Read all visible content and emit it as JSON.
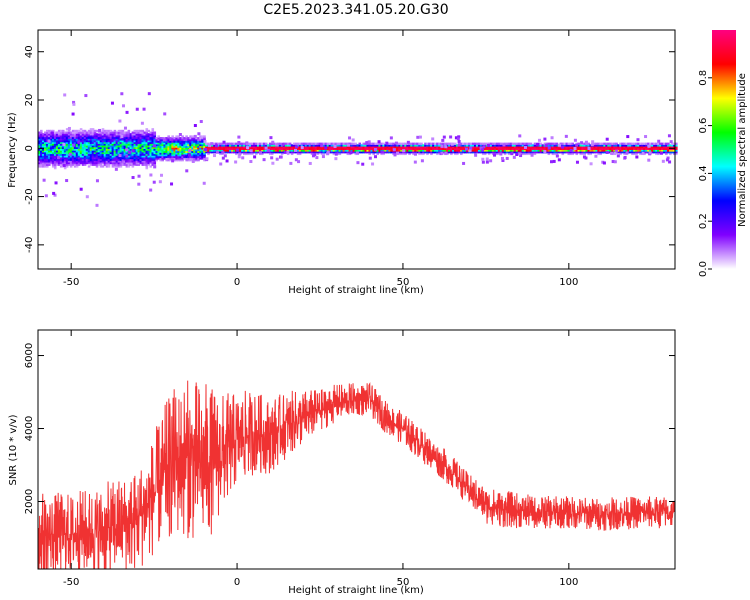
{
  "figure_title": "C2E5.2023.341.05.20.G30",
  "chart_data": [
    {
      "type": "heatmap",
      "xlabel": "Height of straight line (km)",
      "ylabel": "Frequency (Hz)",
      "xlim": [
        -60,
        132
      ],
      "ylim": [
        -50,
        49
      ],
      "x_ticks": [
        -50,
        0,
        50,
        100
      ],
      "y_ticks": [
        -40,
        -20,
        0,
        20,
        40
      ],
      "colorbar": {
        "label": "Normalized spectral amplitude",
        "range": [
          0,
          1
        ],
        "ticks": [
          0.0,
          0.2,
          0.4,
          0.6,
          0.8
        ],
        "colors": [
          "#ffffff",
          "#8000ff",
          "#0000ff",
          "#00ffff",
          "#00ff00",
          "#ffff00",
          "#ff0000",
          "#ff0080"
        ]
      },
      "bands": [
        {
          "x": [
            -60,
            -25
          ],
          "spread_hz": 8,
          "amplitude": 0.45
        },
        {
          "x": [
            -25,
            -10
          ],
          "spread_hz": 5,
          "amplitude": 0.6
        },
        {
          "x": [
            -10,
            132
          ],
          "spread_hz": 2,
          "amplitude": 0.95
        }
      ],
      "grid": false
    },
    {
      "type": "line",
      "xlabel": "Height of straight line (km)",
      "ylabel": "SNR (10 * v/v)",
      "xlim": [
        -60,
        132
      ],
      "ylim": [
        150,
        6700
      ],
      "x_ticks": [
        -50,
        0,
        50,
        100
      ],
      "y_ticks": [
        2000,
        4000,
        6000
      ],
      "series": [
        {
          "color": "#f03232",
          "x": [
            -60,
            -50,
            -40,
            -30,
            -25,
            -20,
            -15,
            -10,
            -5,
            0,
            5,
            10,
            15,
            20,
            25,
            30,
            35,
            40,
            45,
            50,
            55,
            60,
            65,
            70,
            75,
            80,
            90,
            100,
            110,
            120,
            132
          ],
          "y": [
            1100,
            1100,
            1200,
            1500,
            2200,
            3000,
            3200,
            3000,
            3300,
            3700,
            3900,
            3800,
            4100,
            4300,
            4500,
            4700,
            4800,
            4800,
            4300,
            4000,
            3600,
            3200,
            2800,
            2300,
            1900,
            1800,
            1700,
            1700,
            1650,
            1700,
            1700
          ],
          "noise": [
            900,
            900,
            1000,
            1100,
            1300,
            1600,
            1700,
            1800,
            1300,
            1000,
            900,
            800,
            700,
            600,
            450,
            400,
            350,
            350,
            350,
            350,
            350,
            350,
            350,
            350,
            400,
            400,
            350,
            350,
            350,
            350,
            350
          ]
        }
      ],
      "grid": false
    }
  ]
}
